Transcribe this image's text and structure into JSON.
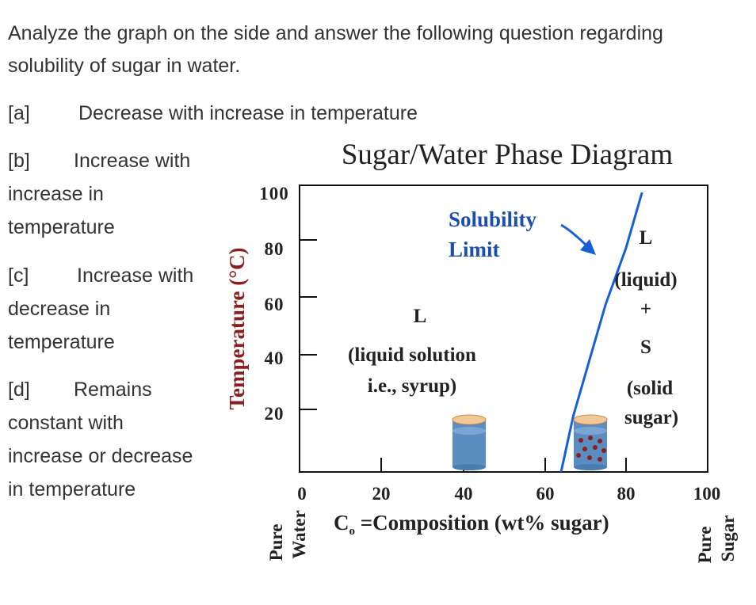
{
  "question": {
    "line1": "Analyze the graph on the side and answer the following question regarding",
    "line2": "solubility of sugar in water."
  },
  "options": [
    {
      "letter": "[a]",
      "lines": [
        "Decrease with increase in temperature"
      ]
    },
    {
      "letter": "[b]",
      "lines": [
        "Increase with",
        "increase in",
        "temperature"
      ]
    },
    {
      "letter": "[c]",
      "lines": [
        "Increase with",
        "decrease in",
        "temperature"
      ]
    },
    {
      "letter": "[d]",
      "lines": [
        "Remains",
        "constant with",
        "increase or decrease",
        "in temperature"
      ]
    }
  ],
  "chart_data": {
    "type": "line",
    "title": "Sugar/Water Phase Diagram",
    "xlabel": "Composition (wt% sugar)",
    "xlabel_prefix": "C",
    "xlabel_subscript": "o",
    "ylabel": "Temperature (°C)",
    "xlim": [
      0,
      100
    ],
    "ylim": [
      0,
      100
    ],
    "x_ticks": [
      "0",
      "20",
      "40",
      "60",
      "80",
      "100"
    ],
    "y_ticks": [
      "20",
      "40",
      "60",
      "80",
      "100"
    ],
    "x_end_labels": {
      "left": [
        "Pure",
        "Water"
      ],
      "right": [
        "Pure",
        "Sugar"
      ]
    },
    "series": [
      {
        "name": "Solubility Limit",
        "x": [
          64,
          67,
          71,
          75,
          80,
          84
        ],
        "y": [
          0,
          20,
          40,
          60,
          80,
          100
        ]
      }
    ],
    "annotations": {
      "solubility": [
        "Solubility",
        "Limit"
      ],
      "liquid_region": [
        "L",
        "(liquid solution",
        "i.e., syrup)"
      ],
      "two_phase_region": [
        "L",
        "(liquid)",
        "+",
        "S",
        "(solid",
        "sugar)"
      ]
    },
    "colors": {
      "curve": "#1560d6",
      "annotation": "#1a4fb0",
      "beaker_fill": "#5b8dc0",
      "beaker_top": "#f2c79a",
      "crystal": "#8b1e1e",
      "text": "#222222"
    }
  }
}
